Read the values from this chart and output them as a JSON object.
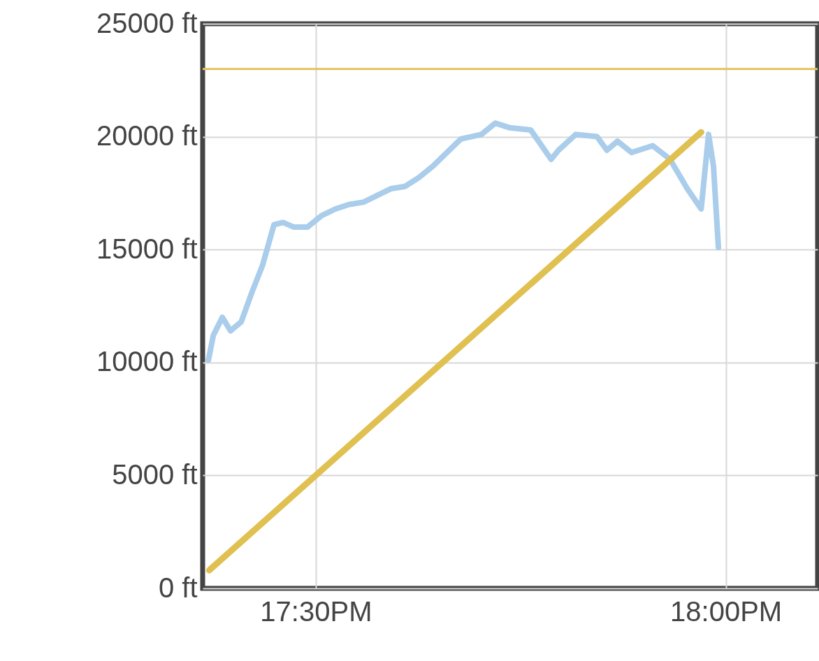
{
  "chart_data": {
    "type": "line",
    "xlim": [
      17.362,
      18.112
    ],
    "xticks": [
      {
        "value": 17.5,
        "label": "17:30PM"
      },
      {
        "value": 18,
        "label": "18:00PM"
      }
    ],
    "ylim": [
      0,
      25000
    ],
    "yticks": [
      {
        "value": 0,
        "label": "0 ft"
      },
      {
        "value": 5000,
        "label": "5000 ft"
      },
      {
        "value": 10000,
        "label": "10000 ft"
      },
      {
        "value": 15000,
        "label": "15000 ft"
      },
      {
        "value": 20000,
        "label": "20000 ft"
      },
      {
        "value": 25000,
        "label": "25000 ft"
      }
    ],
    "grid": true,
    "series": [
      {
        "color": "#a9cdea",
        "x": [
          17.369,
          17.375,
          17.386,
          17.396,
          17.409,
          17.422,
          17.435,
          17.449,
          17.46,
          17.473,
          17.49,
          17.507,
          17.524,
          17.541,
          17.558,
          17.575,
          17.592,
          17.609,
          17.626,
          17.643,
          17.66,
          17.677,
          17.702,
          17.719,
          17.736,
          17.762,
          17.787,
          17.796,
          17.817,
          17.843,
          17.855,
          17.868,
          17.885,
          17.911,
          17.932,
          17.953,
          17.97,
          17.979,
          17.985,
          17.991
        ],
        "values": [
          10100,
          11200,
          12000,
          11400,
          11800,
          13100,
          14300,
          16100,
          16200,
          16000,
          16000,
          16500,
          16800,
          17000,
          17100,
          17400,
          17700,
          17800,
          18200,
          18700,
          19300,
          19900,
          20100,
          20600,
          20400,
          20300,
          19000,
          19400,
          20100,
          20000,
          19400,
          19800,
          19300,
          19600,
          19000,
          17700,
          16800,
          20100,
          18700,
          15100
        ]
      },
      {
        "color": "#e0c050",
        "x": [
          17.37,
          17.97
        ],
        "values": [
          800,
          20200
        ]
      }
    ],
    "ref_lines": [
      {
        "axis": "y",
        "value": 23000,
        "color": "#e3c35a"
      }
    ]
  }
}
